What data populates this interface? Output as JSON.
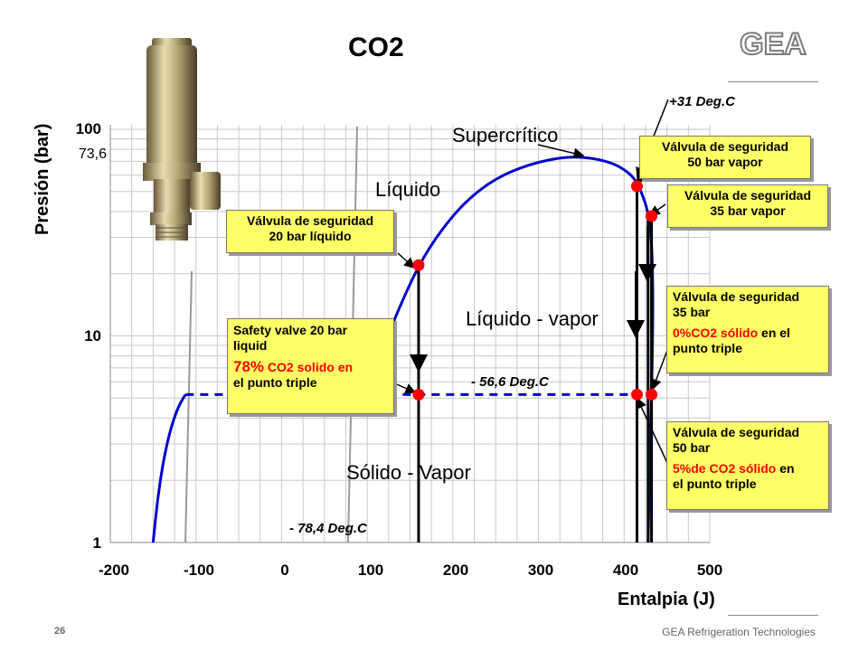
{
  "slide": {
    "title": "CO2",
    "logo_text": "GEA",
    "page_number": "26",
    "footer_company": "GEA Refrigeration Technologies"
  },
  "chart_data": {
    "type": "line",
    "xlabel": "Entalpia (J)",
    "ylabel": "Presión (bar)",
    "x_ticks": [
      "-200",
      "-100",
      "0",
      "100",
      "200",
      "300",
      "400",
      "500"
    ],
    "y_ticks": [
      "1",
      "10",
      "100"
    ],
    "y_extra_label": "73,6",
    "xlim": [
      -200,
      500
    ],
    "ylim": [
      1,
      120
    ],
    "y_scale": "log",
    "grid": true,
    "triple_point_pressure": 5.2,
    "critical_pressure": 73.6,
    "series": [
      {
        "style": "solid",
        "color": "#0000cc",
        "x": [
          -150,
          -145,
          -138,
          -130,
          -122,
          -115,
          -112
        ],
        "y": [
          1,
          1.6,
          2.5,
          3.5,
          4.4,
          5.0,
          5.2
        ]
      },
      {
        "style": "solid",
        "color": "#0000cc",
        "x": [
          120,
          135,
          160,
          185,
          215,
          250,
          290,
          330,
          360,
          385,
          400,
          412,
          420,
          428,
          432,
          434,
          432,
          430,
          428
        ],
        "y": [
          9,
          13,
          22,
          32,
          45,
          58,
          68,
          73.6,
          73,
          69,
          64,
          58,
          50,
          40,
          30,
          15,
          5,
          2.5,
          1
        ]
      },
      {
        "style": "dashed",
        "color": "#0000cc",
        "x": [
          -112,
          432
        ],
        "y": [
          5.2,
          5.2
        ]
      }
    ],
    "vertical_lines": [
      160,
      415,
      428,
      432
    ],
    "points": [
      {
        "x": 160,
        "y": 22
      },
      {
        "x": 160,
        "y": 5.2
      },
      {
        "x": 415,
        "y": 53
      },
      {
        "x": 432,
        "y": 38
      },
      {
        "x": 415,
        "y": 5.2
      },
      {
        "x": 432,
        "y": 5.2
      }
    ],
    "region_labels": {
      "supercritico": "Supercrítico",
      "liquido": "Líquido",
      "liquido_vapor": "Líquido - vapor",
      "solido_vapor": "Sólido - Vapor"
    },
    "temp_labels": {
      "critical": "+31 Deg.C",
      "triple": "- 56,6 Deg.C",
      "sublimation": "- 78,4 Deg.C"
    },
    "annotations": {
      "box_50_vapor": [
        "Válvula de seguridad",
        "50 bar  vapor"
      ],
      "box_35_vapor": [
        "Válvula de seguridad",
        "35 bar  vapor"
      ],
      "box_20_liquido": [
        "Válvula de seguridad",
        "20 bar  líquido"
      ],
      "box_safety_20": {
        "line1": "Safety valve 20 bar",
        "line2": "liquid",
        "pct": "78%",
        "rest1": " CO2 solido en",
        "line4": "el punto triple"
      },
      "box_35_triple": {
        "line1": "Válvula de seguridad",
        "line2": "35 bar",
        "red": "0%CO2 sólido",
        "rest": " en el",
        "line4": "punto triple"
      },
      "box_50_triple": {
        "line1": "Válvula de seguridad",
        "line2": "50 bar",
        "red": "5%de CO2 sólido",
        "rest": " en",
        "line4": "el punto triple"
      }
    }
  }
}
